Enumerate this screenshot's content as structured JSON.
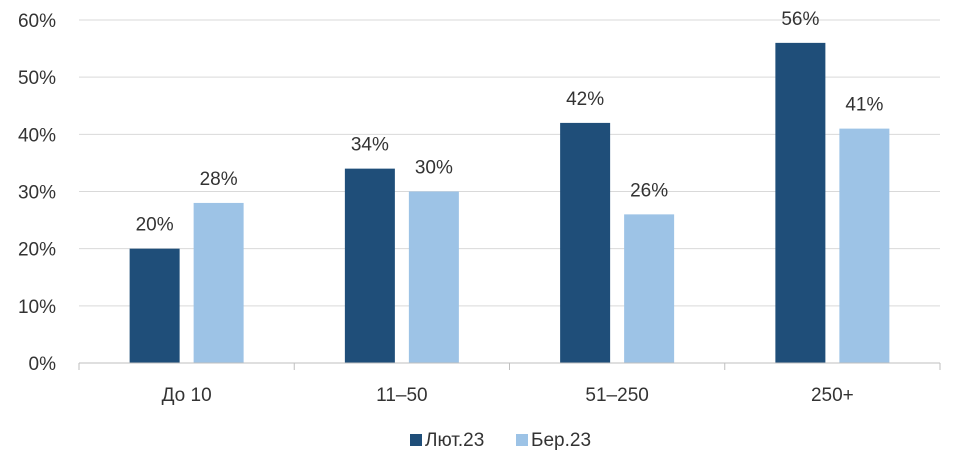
{
  "chart_data": {
    "type": "bar",
    "title": "",
    "xlabel": "",
    "ylabel": "",
    "categories": [
      "До 10",
      "11–50",
      "51–250",
      "250+"
    ],
    "series": [
      {
        "name": "Лют.23",
        "values": [
          20,
          34,
          42,
          56
        ],
        "labels": [
          "20%",
          "34%",
          "42%",
          "56%"
        ],
        "color": "#1f4e79"
      },
      {
        "name": "Бер.23",
        "values": [
          28,
          30,
          26,
          41
        ],
        "labels": [
          "28%",
          "30%",
          "26%",
          "41%"
        ],
        "color": "#9dc3e6"
      }
    ],
    "ylim": [
      0,
      60
    ],
    "yticks": [
      0,
      10,
      20,
      30,
      40,
      50,
      60
    ],
    "ytick_labels": [
      "0%",
      "10%",
      "20%",
      "30%",
      "40%",
      "50%",
      "60%"
    ],
    "grid": true,
    "legend": "bottom-center"
  }
}
